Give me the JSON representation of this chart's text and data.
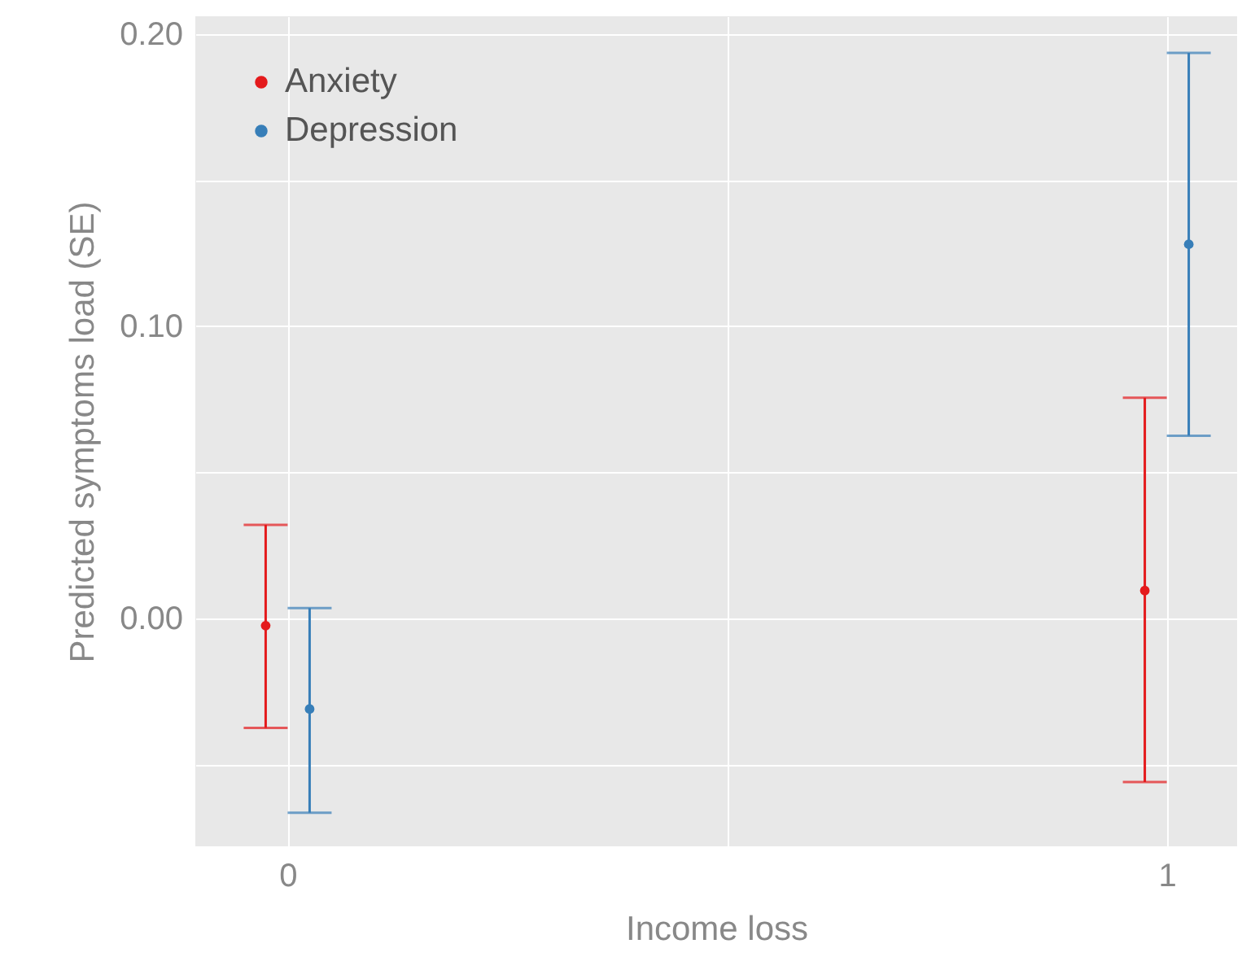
{
  "chart_data": {
    "type": "scatter",
    "xlabel": "Income loss",
    "ylabel": "Predicted symptoms load (SE)",
    "series": [
      {
        "name": "Anxiety",
        "color": "#e41a1c",
        "x": [
          -0.025,
          0.975
        ],
        "values": [
          -0.0025,
          0.0095
        ],
        "errors": [
          [
            -0.0375,
            0.032
          ],
          [
            -0.056,
            0.0755
          ]
        ]
      },
      {
        "name": "Depression",
        "color": "#377eb8",
        "x": [
          0.025,
          1.025
        ],
        "values": [
          -0.031,
          0.128
        ],
        "errors": [
          [
            -0.0665,
            0.0035
          ],
          [
            0.0625,
            0.1935
          ]
        ]
      }
    ],
    "xlim": [
      -0.105,
      1.08
    ],
    "ylim": [
      -0.078,
      0.206
    ],
    "xticks": [
      0,
      {
        "value": 0.5,
        "label": null
      },
      1
    ],
    "yticks": [
      {
        "value": -0.05,
        "label": null
      },
      {
        "value": 0,
        "label": "0.00"
      },
      {
        "value": 0.05,
        "label": null
      },
      {
        "value": 0.1,
        "label": "0.10"
      },
      {
        "value": 0.15,
        "label": null
      },
      {
        "value": 0.2,
        "label": "0.20"
      }
    ],
    "grid": true,
    "legend": "top left",
    "marker": "circle"
  }
}
